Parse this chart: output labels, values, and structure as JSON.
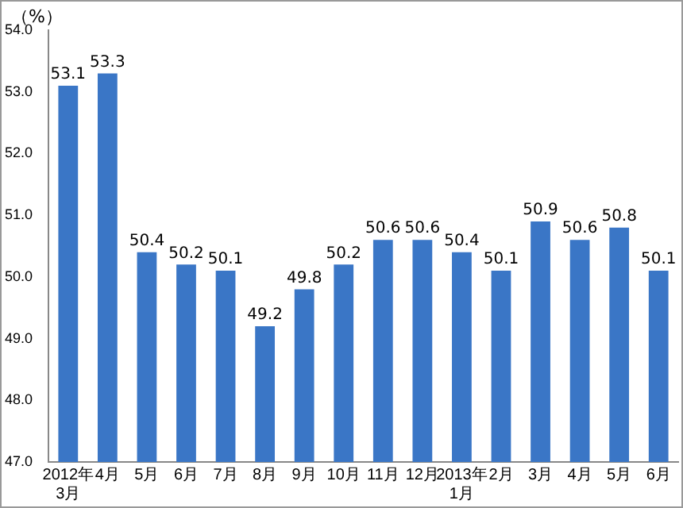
{
  "chart_data": {
    "type": "bar",
    "ylabel": "（%）",
    "categories": [
      "2012年\n3月",
      "4月",
      "5月",
      "6月",
      "7月",
      "8月",
      "9月",
      "10月",
      "11月",
      "12月",
      "2013年\n1月",
      "2月",
      "3月",
      "4月",
      "5月",
      "6月"
    ],
    "values": [
      53.1,
      53.3,
      50.4,
      50.2,
      50.1,
      49.2,
      49.8,
      50.2,
      50.6,
      50.6,
      50.4,
      50.1,
      50.9,
      50.6,
      50.8,
      50.1
    ],
    "color": "#3a76c6",
    "ylim": [
      47,
      54
    ],
    "yticks": [
      {
        "value": 47,
        "label": "47.0"
      },
      {
        "value": 48,
        "label": "48.0"
      },
      {
        "value": 49,
        "label": "49.0"
      },
      {
        "value": 50,
        "label": "50.0"
      },
      {
        "value": 51,
        "label": "51.0"
      },
      {
        "value": 52,
        "label": "52.0"
      },
      {
        "value": 53,
        "label": "53.0"
      },
      {
        "value": 54,
        "label": "54.0"
      }
    ],
    "grid": false,
    "legend": false,
    "data_labels": true
  }
}
